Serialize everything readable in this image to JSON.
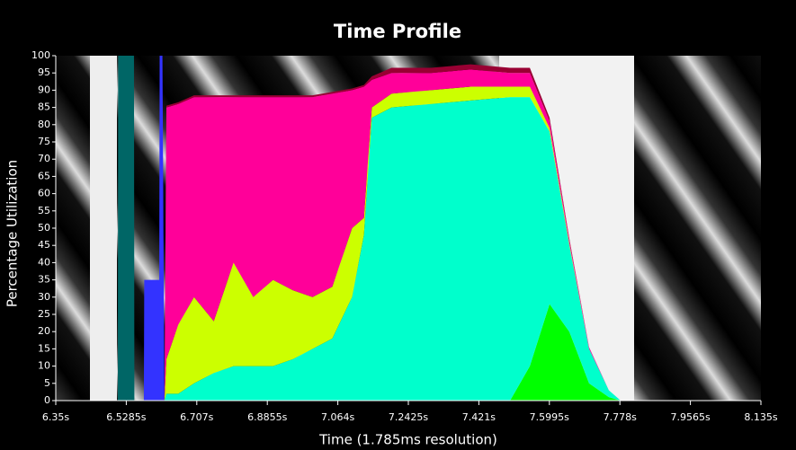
{
  "chart_data": {
    "type": "stacked-area",
    "title": "Time Profile",
    "x_label": "Time (1.785ms resolution)",
    "y_label": "Percentage Utilization",
    "x": [
      6.5,
      6.507,
      6.508,
      6.548,
      6.549,
      6.573,
      6.574,
      6.612,
      6.613,
      6.62,
      6.625,
      6.63,
      6.66,
      6.7,
      6.75,
      6.8,
      6.85,
      6.9,
      6.95,
      7.0,
      7.05,
      7.1,
      7.13,
      7.15,
      7.2,
      7.3,
      7.4,
      7.5,
      7.55,
      7.6,
      7.65,
      7.7,
      7.75,
      7.78
    ],
    "series": [
      {
        "color": "#006666",
        "values": [
          0,
          0,
          100,
          100,
          0,
          0,
          0,
          0,
          0,
          0,
          0,
          0,
          0,
          0,
          0,
          0,
          0,
          0,
          0,
          0,
          0,
          0,
          0,
          0,
          0,
          0,
          0,
          0,
          0,
          0,
          0,
          0,
          0,
          0
        ]
      },
      {
        "color": "#3333ff",
        "values": [
          0,
          0,
          0,
          0,
          0,
          0,
          35,
          35,
          100,
          100,
          0,
          0,
          0,
          0,
          0,
          0,
          0,
          0,
          0,
          0,
          0,
          0,
          0,
          0,
          0,
          0,
          0,
          0,
          0,
          0,
          0,
          0,
          0,
          0
        ]
      },
      {
        "color": "#00ff00",
        "values": [
          0,
          0,
          0,
          0,
          0,
          0,
          0,
          0,
          0,
          0,
          0,
          0,
          0,
          0,
          0,
          0,
          0,
          0,
          0,
          0,
          0,
          0,
          0,
          0,
          0,
          0,
          0,
          0,
          10,
          28,
          20,
          5,
          1,
          0
        ]
      },
      {
        "color": "#00ffcc",
        "values": [
          0,
          0,
          0,
          0,
          0,
          0,
          0,
          0,
          0,
          0,
          0,
          2,
          2,
          5,
          8,
          10,
          10,
          10,
          12,
          15,
          18,
          30,
          48,
          82,
          85,
          86,
          87,
          88,
          78,
          50,
          25,
          10,
          2,
          0
        ]
      },
      {
        "color": "#ccff00",
        "values": [
          0,
          0,
          0,
          0,
          0,
          0,
          0,
          0,
          0,
          0,
          0,
          10,
          20,
          25,
          15,
          30,
          20,
          25,
          20,
          15,
          15,
          20,
          5,
          3,
          4,
          4,
          4,
          3,
          3,
          1,
          0.5,
          0,
          0,
          0
        ]
      },
      {
        "color": "#ff0099",
        "values": [
          0,
          0,
          0,
          0,
          0,
          0,
          0,
          0,
          0,
          0,
          0,
          73,
          64,
          58,
          65,
          48,
          58,
          53,
          56,
          58,
          56,
          40,
          38,
          8,
          6,
          5,
          5,
          4,
          4,
          2,
          1,
          0.5,
          0,
          0
        ]
      },
      {
        "color": "#990033",
        "values": [
          0,
          0,
          0,
          0,
          0,
          0,
          0,
          0,
          0,
          0,
          0,
          0.5,
          0.5,
          0.5,
          0.5,
          0.5,
          0.5,
          0.5,
          0.5,
          0.5,
          0.5,
          0.5,
          0.5,
          1,
          1.5,
          1.5,
          1.5,
          1.5,
          1.5,
          1,
          0.5,
          0,
          0,
          0
        ]
      }
    ],
    "xlim": [
      6.35,
      8.135
    ],
    "xticks": [
      {
        "value": 6.35,
        "label": "6.35s"
      },
      {
        "value": 6.5285,
        "label": "6.5285s"
      },
      {
        "value": 6.707,
        "label": "6.707s"
      },
      {
        "value": 6.8855,
        "label": "6.8855s"
      },
      {
        "value": 7.064,
        "label": "7.064s"
      },
      {
        "value": 7.2425,
        "label": "7.2425s"
      },
      {
        "value": 7.421,
        "label": "7.421s"
      },
      {
        "value": 7.5995,
        "label": "7.5995s"
      },
      {
        "value": 7.778,
        "label": "7.778s"
      },
      {
        "value": 7.9565,
        "label": "7.9565s"
      },
      {
        "value": 8.135,
        "label": "8.135s"
      }
    ],
    "ylim": [
      0,
      100
    ],
    "yticks": [
      0,
      5,
      10,
      15,
      20,
      25,
      30,
      35,
      40,
      45,
      50,
      55,
      60,
      65,
      70,
      75,
      80,
      85,
      90,
      95,
      100
    ]
  }
}
